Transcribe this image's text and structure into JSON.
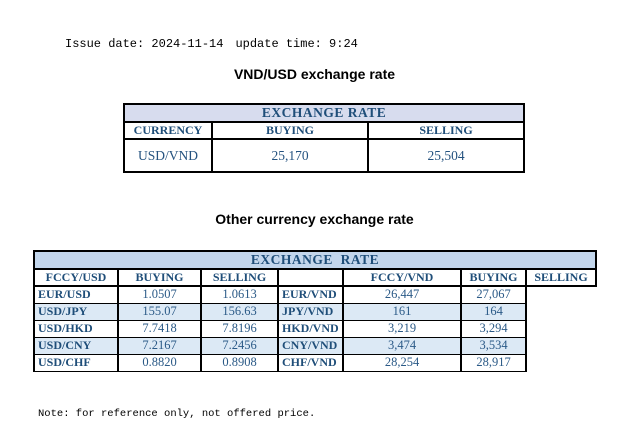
{
  "page": {
    "issue_date": "Issue date: 2024-11-14",
    "update_time": "update time: 9:24",
    "note": "Note: for reference only, not offered price."
  },
  "colors": {
    "header_band_table1": "#D7DCEE",
    "header_band_table2": "#C3D6EC",
    "row_stripe": "#DCE9F5",
    "heading_text": "#1F4E79",
    "value_text": "#2B5A87",
    "border": "#000000"
  },
  "usd_table": {
    "title": "VND/USD exchange rate",
    "header": "EXCHANGE RATE",
    "columns": [
      "CURRENCY",
      "BUYING",
      "SELLING"
    ],
    "rows": [
      [
        "USD/VND",
        "25,170",
        "25,504"
      ]
    ]
  },
  "other_table": {
    "title": "Other currency exchange rate",
    "header": "EXCHANGE  RATE",
    "columns": [
      "FCCY/USD",
      "BUYING",
      "SELLING",
      "",
      "FCCY/VND",
      "BUYING",
      "SELLING"
    ],
    "rows": [
      [
        "EUR/USD",
        "1.0507",
        "1.0613",
        "EUR/VND",
        "26,447",
        "27,067"
      ],
      [
        "USD/JPY",
        "155.07",
        "156.63",
        "JPY/VND",
        "161",
        "164"
      ],
      [
        "USD/HKD",
        "7.7418",
        "7.8196",
        "HKD/VND",
        "3,219",
        "3,294"
      ],
      [
        "USD/CNY",
        "7.2167",
        "7.2456",
        "CNY/VND",
        "3,474",
        "3,534"
      ],
      [
        "USD/CHF",
        "0.8820",
        "0.8908",
        "CHF/VND",
        "28,254",
        "28,917"
      ]
    ]
  }
}
